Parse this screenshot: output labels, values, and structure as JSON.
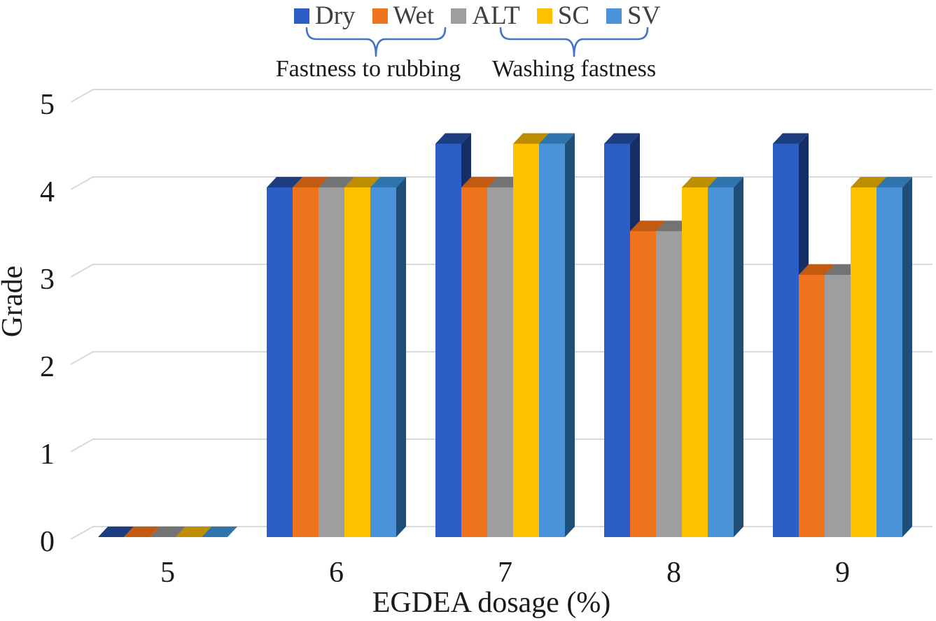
{
  "chart_data": {
    "type": "bar",
    "style": "3d-columns",
    "title": "",
    "xlabel": "EGDEA dosage (%)",
    "ylabel": "Grade",
    "ylim": [
      0,
      5
    ],
    "yticks": [
      0,
      1,
      2,
      3,
      4,
      5
    ],
    "categories": [
      "5",
      "6",
      "7",
      "8",
      "9"
    ],
    "series": [
      {
        "name": "Dry",
        "color": "#2D5EC8",
        "top_color": "#1C3D80",
        "side_color": "#152F66",
        "values": [
          0,
          4,
          4.5,
          4.5,
          4.5
        ]
      },
      {
        "name": "Wet",
        "color": "#F0731E",
        "top_color": "#C25A0F",
        "side_color": "#9E4A0C",
        "values": [
          0,
          4,
          4,
          3.5,
          3
        ]
      },
      {
        "name": "ALT",
        "color": "#9E9E9E",
        "top_color": "#737373",
        "side_color": "#5E5E5E",
        "values": [
          0,
          4,
          4,
          3.5,
          3
        ]
      },
      {
        "name": "SC",
        "color": "#FFC000",
        "top_color": "#BD8E00",
        "side_color": "#8F6C00",
        "values": [
          0,
          4,
          4.5,
          4,
          4
        ]
      },
      {
        "name": "SV",
        "color": "#4B93D8",
        "top_color": "#2E74AD",
        "side_color": "#1F4E79",
        "values": [
          0,
          4,
          4.5,
          4,
          4
        ]
      }
    ],
    "legend_position": "top",
    "grid": true,
    "gridline_color": "#D9D9D9"
  },
  "annotations": {
    "brace_color": "#4472C4",
    "groups": [
      {
        "label": "Fastness to rubbing",
        "series": [
          "Dry",
          "Wet"
        ]
      },
      {
        "label": "Washing fastness",
        "series": [
          "ALT",
          "SC",
          "SV"
        ]
      }
    ]
  }
}
